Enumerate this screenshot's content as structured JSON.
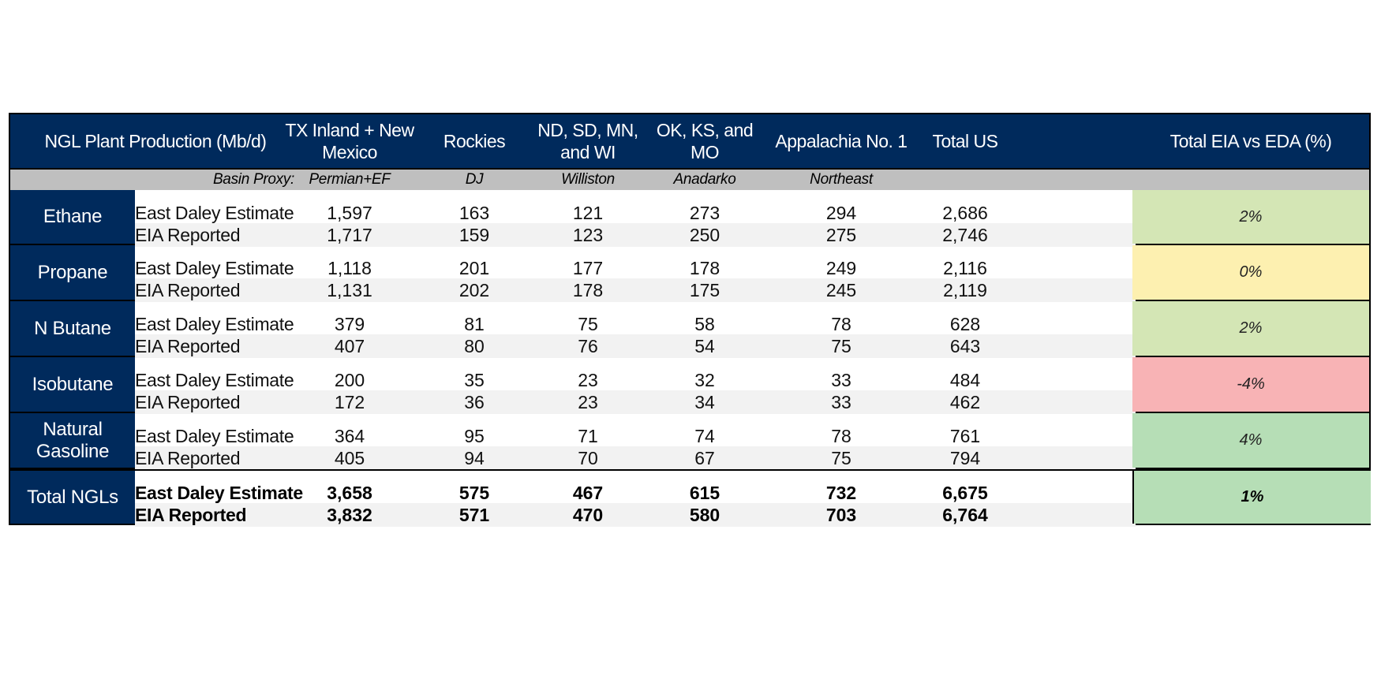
{
  "header": {
    "title": "NGL Plant Production (Mb/d)",
    "columns": [
      "TX Inland + New Mexico",
      "Rockies",
      "ND, SD, MN, and WI",
      "OK, KS, and MO",
      "Appalachia No. 1",
      "Total US",
      "Total EIA vs EDA (%)"
    ]
  },
  "proxy": {
    "label": "Basin Proxy:",
    "values": [
      "Permian+EF",
      "DJ",
      "Williston",
      "Anadarko",
      "Northeast"
    ]
  },
  "colors": {
    "navy": "#002a5c",
    "green_light": "#d4e6b5",
    "yellow": "#fdf0b0",
    "red": "#f8b3b5",
    "green_mid": "#b6deb6"
  },
  "groups": [
    {
      "name": "Ethane",
      "pct": "2%",
      "pct_color": "#d4e6b5",
      "rows": [
        {
          "label": "East Daley Estimate",
          "values": [
            "1,597",
            "163",
            "121",
            "273",
            "294",
            "2,686"
          ]
        },
        {
          "label": "EIA Reported",
          "values": [
            "1,717",
            "159",
            "123",
            "250",
            "275",
            "2,746"
          ]
        }
      ]
    },
    {
      "name": "Propane",
      "pct": "0%",
      "pct_color": "#fdf0b0",
      "rows": [
        {
          "label": "East Daley Estimate",
          "values": [
            "1,118",
            "201",
            "177",
            "178",
            "249",
            "2,116"
          ]
        },
        {
          "label": "EIA Reported",
          "values": [
            "1,131",
            "202",
            "178",
            "175",
            "245",
            "2,119"
          ]
        }
      ]
    },
    {
      "name": "N Butane",
      "pct": "2%",
      "pct_color": "#d4e6b5",
      "rows": [
        {
          "label": "East Daley Estimate",
          "values": [
            "379",
            "81",
            "75",
            "58",
            "78",
            "628"
          ]
        },
        {
          "label": "EIA Reported",
          "values": [
            "407",
            "80",
            "76",
            "54",
            "75",
            "643"
          ]
        }
      ]
    },
    {
      "name": "Isobutane",
      "pct": "-4%",
      "pct_color": "#f8b3b5",
      "rows": [
        {
          "label": "East Daley Estimate",
          "values": [
            "200",
            "35",
            "23",
            "32",
            "33",
            "484"
          ]
        },
        {
          "label": "EIA Reported",
          "values": [
            "172",
            "36",
            "23",
            "34",
            "33",
            "462"
          ]
        }
      ]
    },
    {
      "name": "Natural Gasoline",
      "pct": "4%",
      "pct_color": "#b6deb6",
      "rows": [
        {
          "label": "East Daley Estimate",
          "values": [
            "364",
            "95",
            "71",
            "74",
            "78",
            "761"
          ]
        },
        {
          "label": "EIA Reported",
          "values": [
            "405",
            "94",
            "70",
            "67",
            "75",
            "794"
          ]
        }
      ]
    },
    {
      "name": "Total NGLs",
      "pct": "1%",
      "pct_color": "#b6deb6",
      "rows": [
        {
          "label": "East Daley Estimate",
          "values": [
            "3,658",
            "575",
            "467",
            "615",
            "732",
            "6,675"
          ]
        },
        {
          "label": "EIA Reported",
          "values": [
            "3,832",
            "571",
            "470",
            "580",
            "703",
            "6,764"
          ]
        }
      ]
    }
  ]
}
